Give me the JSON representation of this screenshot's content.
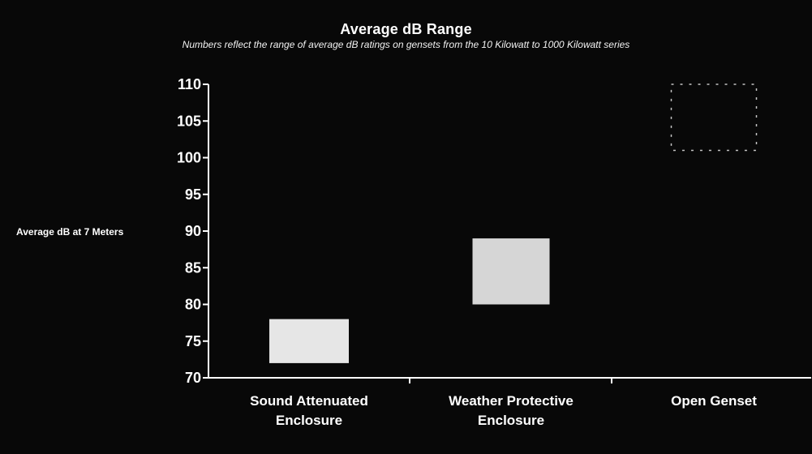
{
  "chart_data": {
    "type": "bar",
    "title": "Average dB Range",
    "subtitle": "Numbers reflect the range of average dB ratings on gensets from the 10 Kilowatt to 1000 Kilowatt series",
    "xlabel": "",
    "ylabel": "Average dB at 7 Meters",
    "ylim": [
      70,
      110
    ],
    "yticks": [
      70,
      75,
      80,
      85,
      90,
      95,
      100,
      105,
      110
    ],
    "grid": false,
    "legend": "none",
    "categories": [
      [
        "Sound Attenuated",
        "Enclosure"
      ],
      [
        "Weather Protective",
        "Enclosure"
      ],
      [
        "Open Genset"
      ]
    ],
    "ranges": [
      {
        "low": 72,
        "high": 78
      },
      {
        "low": 80,
        "high": 89
      },
      {
        "low": 101,
        "high": 110
      }
    ]
  },
  "colors": {
    "background": "#080808",
    "bar": "#f2f2f2",
    "axis": "#ffffff"
  }
}
